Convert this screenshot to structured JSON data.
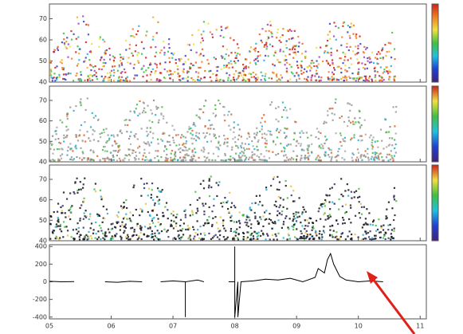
{
  "chart_data": [
    {
      "type": "scatter",
      "palette": "rainbow",
      "xlim": [
        5,
        11.1
      ],
      "ylim": [
        40,
        77
      ],
      "yticks": [
        40,
        50,
        60,
        70
      ]
    },
    {
      "type": "scatter",
      "palette": "gray",
      "xlim": [
        5,
        11.1
      ],
      "ylim": [
        40,
        77
      ],
      "yticks": [
        40,
        50,
        60,
        70
      ]
    },
    {
      "type": "scatter",
      "palette": "dark",
      "xlim": [
        5,
        11.1
      ],
      "ylim": [
        40,
        77
      ],
      "yticks": [
        40,
        50,
        60,
        70
      ]
    },
    {
      "type": "line",
      "xlim": [
        5,
        11.1
      ],
      "ylim": [
        -420,
        420
      ],
      "yticks": [
        -400,
        -200,
        0,
        200,
        400
      ],
      "xticks": [
        {
          "value": 5,
          "label": "05"
        },
        {
          "value": 6,
          "label": "06"
        },
        {
          "value": 7,
          "label": "07"
        },
        {
          "value": 8,
          "label": "08"
        },
        {
          "value": 9,
          "label": "09"
        },
        {
          "value": 10,
          "label": "10"
        },
        {
          "value": 11,
          "label": "11"
        }
      ],
      "series": [
        {
          "color": "#000000",
          "x": [
            5.0,
            5.2,
            5.4,
            null,
            5.9,
            6.1,
            6.3,
            6.5,
            null,
            6.8,
            7.0,
            7.2,
            7.2,
            7.2,
            7.4,
            7.5,
            null,
            7.9,
            8.0,
            8.0,
            8.0,
            8.05,
            8.05,
            8.1,
            8.3,
            8.5,
            8.7,
            8.9,
            9.1,
            9.3,
            9.35,
            9.45,
            9.5,
            9.55,
            9.6,
            9.7,
            9.8,
            10.0,
            10.2,
            10.4
          ],
          "values": [
            5,
            0,
            3,
            null,
            0,
            -5,
            5,
            0,
            null,
            0,
            10,
            0,
            -400,
            0,
            20,
            0,
            null,
            0,
            0,
            400,
            -400,
            0,
            -400,
            0,
            10,
            30,
            20,
            40,
            0,
            50,
            150,
            100,
            250,
            320,
            200,
            60,
            20,
            0,
            10,
            0
          ]
        }
      ]
    }
  ]
}
